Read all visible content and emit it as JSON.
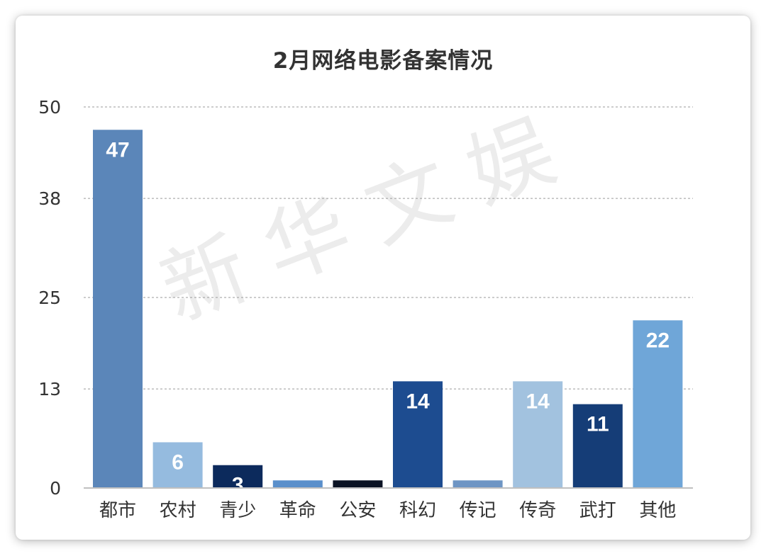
{
  "chart_data": {
    "type": "bar",
    "title": "2月网络电影备案情况",
    "categories": [
      "都市",
      "农村",
      "青少",
      "革命",
      "公安",
      "科幻",
      "传记",
      "传奇",
      "武打",
      "其他"
    ],
    "values": [
      47,
      6,
      3,
      1,
      1,
      14,
      1,
      14,
      11,
      22
    ],
    "data_labels": [
      "47",
      "6",
      "3",
      "",
      "",
      "14",
      "",
      "14",
      "11",
      "22"
    ],
    "bar_colors": [
      "#5b86b9",
      "#95bbdf",
      "#0c2a5c",
      "#5a8fcb",
      "#0b1324",
      "#1d4c90",
      "#6e95c4",
      "#a2c2df",
      "#153d77",
      "#6fa6d8"
    ],
    "yticks": [
      0,
      13,
      25,
      38,
      50
    ],
    "ylim": [
      0,
      50
    ],
    "xlabel": "",
    "ylabel": "",
    "grid": true,
    "legend": "none"
  },
  "watermark": "新华文娱"
}
